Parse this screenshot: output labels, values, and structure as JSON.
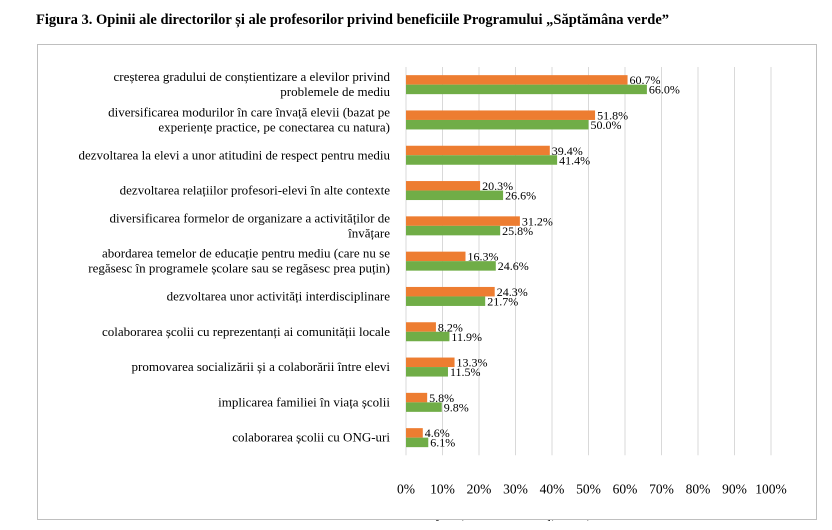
{
  "figure": {
    "title": "Figura 3. Opinii ale directorilor și ale profesorilor privind beneficiile Programului  „Săptămâna verde”"
  },
  "chart_data": {
    "type": "bar",
    "orientation": "horizontal",
    "title": "Figura 3. Opinii ale directorilor și ale profesorilor privind beneficiile Programului  „Săptămâna verde”",
    "xlabel": "",
    "ylabel": "",
    "xlim": [
      0,
      100
    ],
    "unit": "%",
    "ticks": [
      "0%",
      "10%",
      "20%",
      "30%",
      "40%",
      "50%",
      "60%",
      "70%",
      "80%",
      "90%",
      "100%"
    ],
    "grid": true,
    "legend_position": "bottom",
    "categories": [
      [
        "creșterea gradului de conștientizare a elevilor privind",
        "problemele de mediu"
      ],
      [
        "diversificarea modurilor în care învață elevii (bazat pe",
        "experiențe practice, pe conectarea cu natura)"
      ],
      [
        "dezvoltarea la elevi a unor atitudini de respect pentru mediu"
      ],
      [
        "dezvoltarea relațiilor profesori-elevi în alte contexte"
      ],
      [
        "diversificarea formelor de organizare a activităților de",
        "învățare"
      ],
      [
        "abordarea temelor de educație pentru mediu (care nu se",
        "regăsesc în programele școlare sau se regăsesc prea puțin)"
      ],
      [
        "dezvoltarea unor activități interdisciplinare"
      ],
      [
        "colaborarea școlii cu reprezentanți ai comunității locale"
      ],
      [
        "promovarea socializării și a colaborării între elevi"
      ],
      [
        "implicarea familiei în viața școlii"
      ],
      [
        "colaborarea școlii cu ONG-uri"
      ]
    ],
    "series": [
      {
        "name": "profesori",
        "color": "#ED7D31",
        "values": [
          60.7,
          51.8,
          39.4,
          20.3,
          31.2,
          16.3,
          24.3,
          8.2,
          13.3,
          5.8,
          4.6
        ],
        "labels": [
          "60.7%",
          "51.8%",
          "39.4%",
          "20.3%",
          "31.2%",
          "16.3%",
          "24.3%",
          "8.2%",
          "13.3%",
          "5.8%",
          "4.6%"
        ]
      },
      {
        "name": "directori",
        "color": "#70AD47",
        "values": [
          66.0,
          50.0,
          41.4,
          26.6,
          25.8,
          24.6,
          21.7,
          11.9,
          11.5,
          9.8,
          6.1
        ],
        "labels": [
          "66.0%",
          "50.0%",
          "41.4%",
          "26.6%",
          "25.8%",
          "24.6%",
          "21.7%",
          "11.9%",
          "11.5%",
          "9.8%",
          "6.1%"
        ]
      }
    ]
  }
}
